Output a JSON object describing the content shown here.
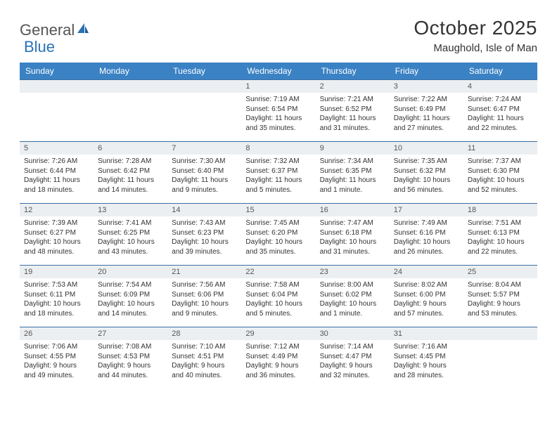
{
  "brand": {
    "text1": "General",
    "text2": "Blue"
  },
  "title": "October 2025",
  "location": "Maughold, Isle of Man",
  "colors": {
    "header_bg": "#3b82c4",
    "rule": "#3b6fa3",
    "daynum_bg": "#eceff1",
    "text": "#333333",
    "brand_gray": "#555555",
    "brand_blue": "#2a72b5",
    "page_bg": "#ffffff"
  },
  "typography": {
    "title_fontsize": 28,
    "location_fontsize": 15,
    "dayhead_fontsize": 12,
    "daynum_fontsize": 11,
    "body_fontsize": 10
  },
  "day_headers": [
    "Sunday",
    "Monday",
    "Tuesday",
    "Wednesday",
    "Thursday",
    "Friday",
    "Saturday"
  ],
  "weeks": [
    [
      {
        "n": "",
        "sr": "",
        "ss": "",
        "dl": ""
      },
      {
        "n": "",
        "sr": "",
        "ss": "",
        "dl": ""
      },
      {
        "n": "",
        "sr": "",
        "ss": "",
        "dl": ""
      },
      {
        "n": "1",
        "sr": "Sunrise: 7:19 AM",
        "ss": "Sunset: 6:54 PM",
        "dl": "Daylight: 11 hours and 35 minutes."
      },
      {
        "n": "2",
        "sr": "Sunrise: 7:21 AM",
        "ss": "Sunset: 6:52 PM",
        "dl": "Daylight: 11 hours and 31 minutes."
      },
      {
        "n": "3",
        "sr": "Sunrise: 7:22 AM",
        "ss": "Sunset: 6:49 PM",
        "dl": "Daylight: 11 hours and 27 minutes."
      },
      {
        "n": "4",
        "sr": "Sunrise: 7:24 AM",
        "ss": "Sunset: 6:47 PM",
        "dl": "Daylight: 11 hours and 22 minutes."
      }
    ],
    [
      {
        "n": "5",
        "sr": "Sunrise: 7:26 AM",
        "ss": "Sunset: 6:44 PM",
        "dl": "Daylight: 11 hours and 18 minutes."
      },
      {
        "n": "6",
        "sr": "Sunrise: 7:28 AM",
        "ss": "Sunset: 6:42 PM",
        "dl": "Daylight: 11 hours and 14 minutes."
      },
      {
        "n": "7",
        "sr": "Sunrise: 7:30 AM",
        "ss": "Sunset: 6:40 PM",
        "dl": "Daylight: 11 hours and 9 minutes."
      },
      {
        "n": "8",
        "sr": "Sunrise: 7:32 AM",
        "ss": "Sunset: 6:37 PM",
        "dl": "Daylight: 11 hours and 5 minutes."
      },
      {
        "n": "9",
        "sr": "Sunrise: 7:34 AM",
        "ss": "Sunset: 6:35 PM",
        "dl": "Daylight: 11 hours and 1 minute."
      },
      {
        "n": "10",
        "sr": "Sunrise: 7:35 AM",
        "ss": "Sunset: 6:32 PM",
        "dl": "Daylight: 10 hours and 56 minutes."
      },
      {
        "n": "11",
        "sr": "Sunrise: 7:37 AM",
        "ss": "Sunset: 6:30 PM",
        "dl": "Daylight: 10 hours and 52 minutes."
      }
    ],
    [
      {
        "n": "12",
        "sr": "Sunrise: 7:39 AM",
        "ss": "Sunset: 6:27 PM",
        "dl": "Daylight: 10 hours and 48 minutes."
      },
      {
        "n": "13",
        "sr": "Sunrise: 7:41 AM",
        "ss": "Sunset: 6:25 PM",
        "dl": "Daylight: 10 hours and 43 minutes."
      },
      {
        "n": "14",
        "sr": "Sunrise: 7:43 AM",
        "ss": "Sunset: 6:23 PM",
        "dl": "Daylight: 10 hours and 39 minutes."
      },
      {
        "n": "15",
        "sr": "Sunrise: 7:45 AM",
        "ss": "Sunset: 6:20 PM",
        "dl": "Daylight: 10 hours and 35 minutes."
      },
      {
        "n": "16",
        "sr": "Sunrise: 7:47 AM",
        "ss": "Sunset: 6:18 PM",
        "dl": "Daylight: 10 hours and 31 minutes."
      },
      {
        "n": "17",
        "sr": "Sunrise: 7:49 AM",
        "ss": "Sunset: 6:16 PM",
        "dl": "Daylight: 10 hours and 26 minutes."
      },
      {
        "n": "18",
        "sr": "Sunrise: 7:51 AM",
        "ss": "Sunset: 6:13 PM",
        "dl": "Daylight: 10 hours and 22 minutes."
      }
    ],
    [
      {
        "n": "19",
        "sr": "Sunrise: 7:53 AM",
        "ss": "Sunset: 6:11 PM",
        "dl": "Daylight: 10 hours and 18 minutes."
      },
      {
        "n": "20",
        "sr": "Sunrise: 7:54 AM",
        "ss": "Sunset: 6:09 PM",
        "dl": "Daylight: 10 hours and 14 minutes."
      },
      {
        "n": "21",
        "sr": "Sunrise: 7:56 AM",
        "ss": "Sunset: 6:06 PM",
        "dl": "Daylight: 10 hours and 9 minutes."
      },
      {
        "n": "22",
        "sr": "Sunrise: 7:58 AM",
        "ss": "Sunset: 6:04 PM",
        "dl": "Daylight: 10 hours and 5 minutes."
      },
      {
        "n": "23",
        "sr": "Sunrise: 8:00 AM",
        "ss": "Sunset: 6:02 PM",
        "dl": "Daylight: 10 hours and 1 minute."
      },
      {
        "n": "24",
        "sr": "Sunrise: 8:02 AM",
        "ss": "Sunset: 6:00 PM",
        "dl": "Daylight: 9 hours and 57 minutes."
      },
      {
        "n": "25",
        "sr": "Sunrise: 8:04 AM",
        "ss": "Sunset: 5:57 PM",
        "dl": "Daylight: 9 hours and 53 minutes."
      }
    ],
    [
      {
        "n": "26",
        "sr": "Sunrise: 7:06 AM",
        "ss": "Sunset: 4:55 PM",
        "dl": "Daylight: 9 hours and 49 minutes."
      },
      {
        "n": "27",
        "sr": "Sunrise: 7:08 AM",
        "ss": "Sunset: 4:53 PM",
        "dl": "Daylight: 9 hours and 44 minutes."
      },
      {
        "n": "28",
        "sr": "Sunrise: 7:10 AM",
        "ss": "Sunset: 4:51 PM",
        "dl": "Daylight: 9 hours and 40 minutes."
      },
      {
        "n": "29",
        "sr": "Sunrise: 7:12 AM",
        "ss": "Sunset: 4:49 PM",
        "dl": "Daylight: 9 hours and 36 minutes."
      },
      {
        "n": "30",
        "sr": "Sunrise: 7:14 AM",
        "ss": "Sunset: 4:47 PM",
        "dl": "Daylight: 9 hours and 32 minutes."
      },
      {
        "n": "31",
        "sr": "Sunrise: 7:16 AM",
        "ss": "Sunset: 4:45 PM",
        "dl": "Daylight: 9 hours and 28 minutes."
      },
      {
        "n": "",
        "sr": "",
        "ss": "",
        "dl": ""
      }
    ]
  ]
}
